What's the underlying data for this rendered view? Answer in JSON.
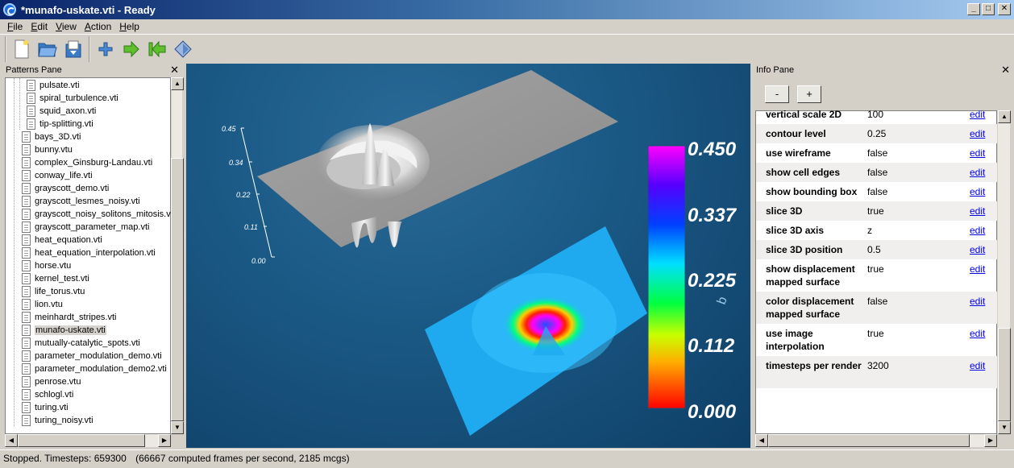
{
  "window": {
    "title": "*munafo-uskate.vti - Ready",
    "controls": [
      "_",
      "□",
      "✕"
    ]
  },
  "menu": {
    "items": [
      {
        "u": "F",
        "rest": "ile"
      },
      {
        "u": "E",
        "rest": "dit"
      },
      {
        "u": "V",
        "rest": "iew"
      },
      {
        "u": "A",
        "rest": "ction"
      },
      {
        "u": "H",
        "rest": "elp"
      }
    ]
  },
  "toolbar": {
    "icons": [
      "new-file-icon",
      "open-folder-icon",
      "reload-icon",
      "add-icon",
      "run-icon",
      "reset-icon",
      "diamond-icon"
    ]
  },
  "patterns_pane": {
    "title": "Patterns Pane",
    "close": "✕",
    "items": [
      {
        "label": "pulsate.vti",
        "indent": 1
      },
      {
        "label": "spiral_turbulence.vti",
        "indent": 1
      },
      {
        "label": "squid_axon.vti",
        "indent": 1
      },
      {
        "label": "tip-splitting.vti",
        "indent": 1
      },
      {
        "label": "bays_3D.vti",
        "indent": 0
      },
      {
        "label": "bunny.vtu",
        "indent": 0
      },
      {
        "label": "complex_Ginsburg-Landau.vti",
        "indent": 0
      },
      {
        "label": "conway_life.vti",
        "indent": 0
      },
      {
        "label": "grayscott_demo.vti",
        "indent": 0
      },
      {
        "label": "grayscott_lesmes_noisy.vti",
        "indent": 0
      },
      {
        "label": "grayscott_noisy_solitons_mitosis.vti",
        "indent": 0
      },
      {
        "label": "grayscott_parameter_map.vti",
        "indent": 0
      },
      {
        "label": "heat_equation.vti",
        "indent": 0
      },
      {
        "label": "heat_equation_interpolation.vti",
        "indent": 0
      },
      {
        "label": "horse.vtu",
        "indent": 0
      },
      {
        "label": "kernel_test.vti",
        "indent": 0
      },
      {
        "label": "life_torus.vtu",
        "indent": 0
      },
      {
        "label": "lion.vtu",
        "indent": 0
      },
      {
        "label": "meinhardt_stripes.vti",
        "indent": 0
      },
      {
        "label": "munafo-uskate.vti",
        "indent": 0,
        "selected": true
      },
      {
        "label": "mutually-catalytic_spots.vti",
        "indent": 0
      },
      {
        "label": "parameter_modulation_demo.vti",
        "indent": 0
      },
      {
        "label": "parameter_modulation_demo2.vti",
        "indent": 0
      },
      {
        "label": "penrose.vtu",
        "indent": 0
      },
      {
        "label": "schlogl.vti",
        "indent": 0
      },
      {
        "label": "turing.vti",
        "indent": 0
      },
      {
        "label": "turing_noisy.vti",
        "indent": 0
      }
    ]
  },
  "viewport": {
    "axis_ticks": [
      "0.45",
      "0.34",
      "0.22",
      "0.11",
      "0.00"
    ],
    "axis_label": "b",
    "colorbar": {
      "labels": [
        "0.450",
        "0.337",
        "0.225",
        "0.112",
        "0.000"
      ]
    }
  },
  "info_pane": {
    "title": "Info Pane",
    "close": "✕",
    "minus_label": "-",
    "plus_label": "+",
    "rows": [
      {
        "key": "vertical scale 2D",
        "value": "100",
        "edit": "edit"
      },
      {
        "key": "contour level",
        "value": "0.25",
        "edit": "edit"
      },
      {
        "key": "use wireframe",
        "value": "false",
        "edit": "edit"
      },
      {
        "key": "show cell edges",
        "value": "false",
        "edit": "edit"
      },
      {
        "key": "show bounding box",
        "value": "false",
        "edit": "edit"
      },
      {
        "key": "slice 3D",
        "value": "true",
        "edit": "edit"
      },
      {
        "key": "slice 3D axis",
        "value": "z",
        "edit": "edit"
      },
      {
        "key": "slice 3D position",
        "value": "0.5",
        "edit": "edit"
      },
      {
        "key": "show displacement mapped surface",
        "value": "true",
        "edit": "edit"
      },
      {
        "key": "color displacement mapped surface",
        "value": "false",
        "edit": "edit"
      },
      {
        "key": "use image interpolation",
        "value": "true",
        "edit": "edit"
      },
      {
        "key": "timesteps per render",
        "value": "3200",
        "edit": "edit"
      }
    ]
  },
  "status": {
    "state": "Stopped. Timesteps: 659300",
    "rate": "(66667 computed frames per second, 2185 mcgs)"
  }
}
